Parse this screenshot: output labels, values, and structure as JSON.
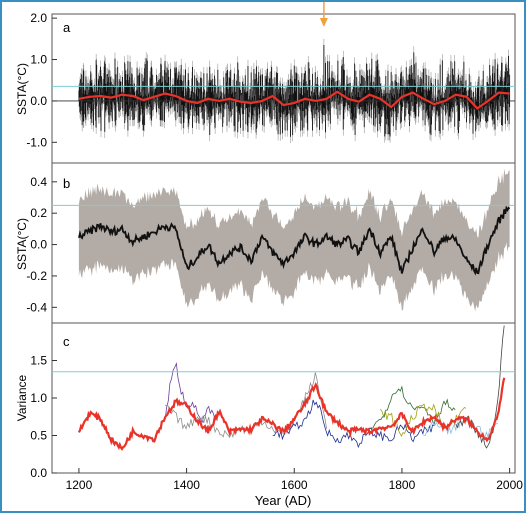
{
  "colors": {
    "frame": "#3a8fc1",
    "annual": "#111111",
    "annual_range": "#9a9a9a",
    "smooth": "#e8332a",
    "reference_line": "#7ccfd0",
    "band": "#b3aba6",
    "marker": "#f2a03d",
    "variance_series": [
      "#6b3fa0",
      "#8e8e8e",
      "#1f2f8f",
      "#2e6b2e",
      "#a0a010",
      "#8fb8d8",
      "#444444"
    ]
  },
  "chart_data": [
    {
      "panel": "a",
      "type": "line",
      "ylabel": "SSTA(°C)",
      "ylim": [
        -1.5,
        2.1
      ],
      "yticks": [
        "-1.0",
        "0.0",
        "1.0",
        "2.0"
      ],
      "yticks_values": [
        -1.0,
        0.0,
        1.0,
        2.0
      ],
      "xlim": [
        1150,
        2010
      ],
      "x_start": 1200,
      "x_end": 2000,
      "reference_lines": [
        0.0,
        0.35
      ],
      "marker_year": 1655,
      "annual_amplitude": 0.45,
      "annual_peak_max": 1.35,
      "smooth_series": {
        "x": [
          1200,
          1220,
          1240,
          1260,
          1280,
          1300,
          1320,
          1340,
          1360,
          1380,
          1400,
          1420,
          1440,
          1460,
          1480,
          1500,
          1520,
          1540,
          1560,
          1580,
          1600,
          1620,
          1640,
          1660,
          1680,
          1700,
          1720,
          1740,
          1760,
          1780,
          1800,
          1820,
          1840,
          1860,
          1880,
          1900,
          1920,
          1940,
          1960,
          1980,
          2000
        ],
        "y": [
          0.05,
          0.1,
          0.12,
          0.08,
          0.15,
          0.12,
          0.02,
          0.1,
          0.18,
          0.12,
          0.0,
          -0.05,
          0.05,
          0.0,
          0.05,
          -0.02,
          -0.05,
          0.0,
          0.12,
          -0.1,
          -0.05,
          0.05,
          0.0,
          0.05,
          0.22,
          0.05,
          -0.02,
          0.15,
          0.05,
          -0.15,
          0.1,
          0.2,
          0.05,
          -0.08,
          0.0,
          0.15,
          0.1,
          -0.18,
          0.0,
          0.2,
          0.18
        ]
      }
    },
    {
      "panel": "b",
      "type": "area",
      "ylabel": "SSTA(°C)",
      "ylim": [
        -0.5,
        0.52
      ],
      "yticks": [
        "-0.4",
        "-0.2",
        "0.0",
        "0.2",
        "0.4"
      ],
      "yticks_values": [
        -0.4,
        -0.2,
        0.0,
        0.2,
        0.4
      ],
      "xlim": [
        1150,
        2010
      ],
      "reference_lines": [
        0.25
      ],
      "band_halfwidth": 0.24,
      "mean_series": {
        "x": [
          1200,
          1220,
          1240,
          1260,
          1280,
          1300,
          1320,
          1340,
          1360,
          1380,
          1400,
          1420,
          1440,
          1460,
          1480,
          1500,
          1520,
          1540,
          1560,
          1580,
          1600,
          1620,
          1640,
          1660,
          1680,
          1700,
          1720,
          1740,
          1760,
          1780,
          1800,
          1820,
          1840,
          1860,
          1880,
          1900,
          1920,
          1940,
          1960,
          1980,
          2000
        ],
        "y": [
          0.05,
          0.08,
          0.12,
          0.08,
          0.1,
          0.02,
          0.05,
          0.08,
          0.12,
          0.1,
          -0.15,
          -0.08,
          0.0,
          -0.12,
          -0.05,
          -0.02,
          -0.1,
          0.05,
          -0.05,
          -0.12,
          -0.05,
          0.05,
          0.0,
          0.05,
          0.0,
          0.03,
          -0.05,
          0.1,
          -0.05,
          0.05,
          -0.18,
          -0.02,
          0.1,
          -0.05,
          0.05,
          0.03,
          -0.1,
          -0.18,
          0.0,
          0.15,
          0.25
        ]
      }
    },
    {
      "panel": "c",
      "type": "line",
      "ylabel": "Variance",
      "xlabel": "Year (AD)",
      "ylim": [
        0.0,
        2.0
      ],
      "yticks": [
        "0.0",
        "0.5",
        "1.0",
        "1.5"
      ],
      "yticks_values": [
        0.0,
        0.5,
        1.0,
        1.5
      ],
      "xlim": [
        1150,
        2010
      ],
      "xticks": [
        "1200",
        "1400",
        "1600",
        "1800",
        "2000"
      ],
      "xticks_values": [
        1200,
        1400,
        1600,
        1800,
        2000
      ],
      "reference_lines": [
        1.35
      ],
      "mean_series": {
        "x": [
          1200,
          1220,
          1240,
          1260,
          1280,
          1300,
          1320,
          1340,
          1360,
          1380,
          1400,
          1420,
          1440,
          1460,
          1480,
          1500,
          1520,
          1540,
          1560,
          1580,
          1600,
          1620,
          1640,
          1660,
          1680,
          1700,
          1720,
          1740,
          1760,
          1780,
          1800,
          1820,
          1840,
          1860,
          1880,
          1900,
          1920,
          1940,
          1960,
          1980,
          1990
        ],
        "y": [
          0.55,
          0.8,
          0.72,
          0.45,
          0.32,
          0.55,
          0.5,
          0.45,
          0.75,
          0.95,
          0.9,
          0.7,
          0.55,
          0.82,
          0.55,
          0.58,
          0.58,
          0.72,
          0.65,
          0.55,
          0.72,
          0.92,
          1.18,
          0.8,
          0.68,
          0.55,
          0.58,
          0.55,
          0.6,
          0.62,
          0.78,
          0.55,
          0.68,
          0.75,
          0.6,
          0.72,
          0.72,
          0.55,
          0.45,
          0.8,
          1.3
        ]
      },
      "other_series": [
        {
          "x": [
            1360,
            1370,
            1380,
            1390,
            1400,
            1410,
            1420,
            1430,
            1440,
            1450,
            1460
          ],
          "y": [
            0.7,
            1.2,
            1.45,
            1.1,
            0.9,
            0.95,
            0.8,
            0.7,
            0.85,
            0.75,
            0.7
          ]
        },
        {
          "x": [
            1360,
            1380,
            1400,
            1420,
            1440,
            1460,
            1480,
            1500,
            1520,
            1540,
            1560,
            1580,
            1600,
            1620,
            1640,
            1660
          ],
          "y": [
            0.9,
            0.75,
            0.6,
            0.75,
            0.7,
            0.55,
            0.5,
            0.6,
            0.55,
            0.7,
            0.6,
            0.5,
            0.7,
            1.0,
            1.3,
            0.6
          ]
        },
        {
          "x": [
            1560,
            1580,
            1600,
            1620,
            1640,
            1660,
            1680,
            1700,
            1720,
            1740,
            1760,
            1780,
            1800,
            1820,
            1840,
            1860
          ],
          "y": [
            0.55,
            0.5,
            0.6,
            0.7,
            1.0,
            0.55,
            0.45,
            0.5,
            0.4,
            0.55,
            0.5,
            0.45,
            0.65,
            0.45,
            0.55,
            0.6
          ]
        },
        {
          "x": [
            1740,
            1760,
            1780,
            1790,
            1800,
            1820,
            1840,
            1860,
            1880,
            1900
          ],
          "y": [
            0.6,
            0.7,
            1.0,
            1.15,
            1.1,
            0.85,
            0.9,
            0.7,
            0.95,
            0.8
          ]
        },
        {
          "x": [
            1760,
            1780,
            1800,
            1820,
            1840,
            1860,
            1880,
            1900,
            1920
          ],
          "y": [
            0.8,
            0.75,
            0.5,
            0.75,
            0.9,
            0.85,
            0.6,
            0.7,
            0.9
          ]
        },
        {
          "x": [
            1840,
            1860,
            1880,
            1900,
            1920,
            1940,
            1960,
            1980
          ],
          "y": [
            0.5,
            0.65,
            0.55,
            0.6,
            0.7,
            0.6,
            0.5,
            0.7
          ]
        },
        {
          "x": [
            1900,
            1920,
            1940,
            1960,
            1970,
            1980,
            1990
          ],
          "y": [
            0.6,
            0.75,
            0.55,
            0.35,
            0.6,
            1.1,
            2.0
          ]
        }
      ]
    }
  ],
  "labels": {
    "panel_a": "a",
    "panel_b": "b",
    "panel_c": "c"
  }
}
